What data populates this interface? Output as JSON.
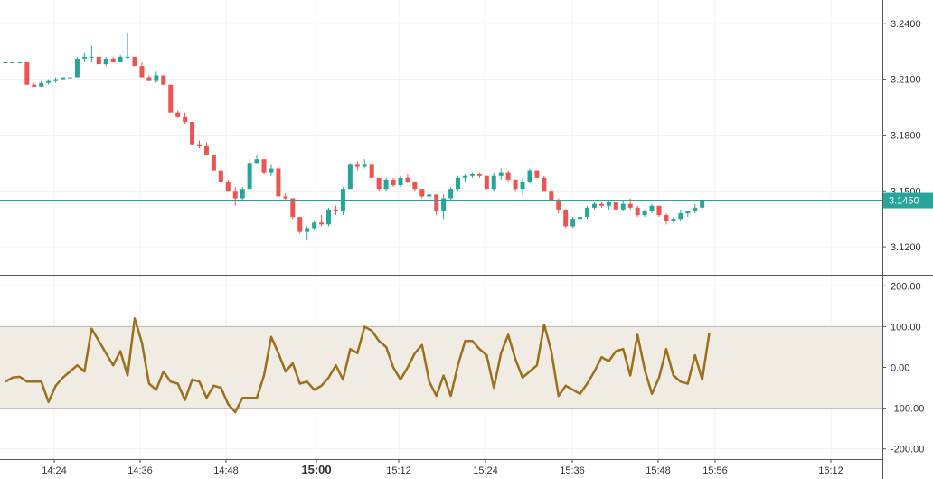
{
  "chart_data": [
    {
      "type": "candlestick",
      "title": "",
      "ylim": [
        3.105,
        3.2525
      ],
      "yticks": [
        "3.2400",
        "3.2100",
        "3.1800",
        "3.1500",
        "3.1200"
      ],
      "last_price": "3.1450",
      "colors": {
        "up": "#26a69a",
        "down": "#ef5350",
        "last_line": "#26a69a"
      },
      "candles": [
        [
          3.219,
          3.219,
          3.219,
          3.219
        ],
        [
          3.219,
          3.219,
          3.219,
          3.219
        ],
        [
          3.219,
          3.219,
          3.219,
          3.219
        ],
        [
          3.219,
          3.219,
          3.207,
          3.207
        ],
        [
          3.207,
          3.208,
          3.206,
          3.206
        ],
        [
          3.206,
          3.209,
          3.206,
          3.208
        ],
        [
          3.208,
          3.21,
          3.207,
          3.209
        ],
        [
          3.209,
          3.211,
          3.208,
          3.21
        ],
        [
          3.21,
          3.211,
          3.21,
          3.211
        ],
        [
          3.211,
          3.211,
          3.211,
          3.211
        ],
        [
          3.211,
          3.222,
          3.211,
          3.221
        ],
        [
          3.221,
          3.224,
          3.219,
          3.222
        ],
        [
          3.222,
          3.228,
          3.219,
          3.222
        ],
        [
          3.222,
          3.222,
          3.218,
          3.218
        ],
        [
          3.218,
          3.222,
          3.217,
          3.221
        ],
        [
          3.221,
          3.222,
          3.219,
          3.219
        ],
        [
          3.219,
          3.223,
          3.219,
          3.222
        ],
        [
          3.222,
          3.235,
          3.221,
          3.222
        ],
        [
          3.222,
          3.222,
          3.217,
          3.217
        ],
        [
          3.217,
          3.219,
          3.211,
          3.211
        ],
        [
          3.211,
          3.212,
          3.209,
          3.209
        ],
        [
          3.209,
          3.214,
          3.208,
          3.212
        ],
        [
          3.212,
          3.212,
          3.207,
          3.207
        ],
        [
          3.207,
          3.207,
          3.192,
          3.192
        ],
        [
          3.192,
          3.193,
          3.189,
          3.19
        ],
        [
          3.19,
          3.192,
          3.186,
          3.187
        ],
        [
          3.187,
          3.187,
          3.175,
          3.175
        ],
        [
          3.175,
          3.177,
          3.173,
          3.174
        ],
        [
          3.174,
          3.176,
          3.169,
          3.169
        ],
        [
          3.169,
          3.169,
          3.161,
          3.161
        ],
        [
          3.161,
          3.161,
          3.155,
          3.155
        ],
        [
          3.155,
          3.156,
          3.15,
          3.15
        ],
        [
          3.15,
          3.152,
          3.142,
          3.146
        ],
        [
          3.146,
          3.152,
          3.145,
          3.151
        ],
        [
          3.151,
          3.167,
          3.151,
          3.165
        ],
        [
          3.165,
          3.169,
          3.165,
          3.167
        ],
        [
          3.167,
          3.167,
          3.159,
          3.16
        ],
        [
          3.16,
          3.164,
          3.158,
          3.162
        ],
        [
          3.162,
          3.163,
          3.147,
          3.147
        ],
        [
          3.147,
          3.149,
          3.145,
          3.146
        ],
        [
          3.146,
          3.146,
          3.135,
          3.136
        ],
        [
          3.136,
          3.136,
          3.127,
          3.128
        ],
        [
          3.128,
          3.131,
          3.124,
          3.13
        ],
        [
          3.13,
          3.134,
          3.129,
          3.133
        ],
        [
          3.133,
          3.137,
          3.131,
          3.132
        ],
        [
          3.132,
          3.141,
          3.131,
          3.14
        ],
        [
          3.14,
          3.142,
          3.137,
          3.139
        ],
        [
          3.139,
          3.152,
          3.137,
          3.151
        ],
        [
          3.151,
          3.165,
          3.151,
          3.164
        ],
        [
          3.164,
          3.166,
          3.161,
          3.163
        ],
        [
          3.163,
          3.167,
          3.162,
          3.164
        ],
        [
          3.164,
          3.164,
          3.156,
          3.157
        ],
        [
          3.157,
          3.157,
          3.15,
          3.151
        ],
        [
          3.151,
          3.157,
          3.15,
          3.156
        ],
        [
          3.156,
          3.157,
          3.152,
          3.153
        ],
        [
          3.153,
          3.158,
          3.152,
          3.157
        ],
        [
          3.157,
          3.159,
          3.154,
          3.155
        ],
        [
          3.155,
          3.155,
          3.15,
          3.151
        ],
        [
          3.151,
          3.151,
          3.146,
          3.147
        ],
        [
          3.147,
          3.148,
          3.146,
          3.148
        ],
        [
          3.148,
          3.148,
          3.137,
          3.139
        ],
        [
          3.139,
          3.148,
          3.135,
          3.146
        ],
        [
          3.146,
          3.152,
          3.145,
          3.151
        ],
        [
          3.151,
          3.158,
          3.15,
          3.157
        ],
        [
          3.157,
          3.159,
          3.155,
          3.158
        ],
        [
          3.158,
          3.16,
          3.157,
          3.159
        ],
        [
          3.159,
          3.16,
          3.157,
          3.158
        ],
        [
          3.158,
          3.158,
          3.151,
          3.151
        ],
        [
          3.151,
          3.16,
          3.15,
          3.158
        ],
        [
          3.158,
          3.162,
          3.156,
          3.16
        ],
        [
          3.16,
          3.161,
          3.155,
          3.156
        ],
        [
          3.156,
          3.156,
          3.15,
          3.151
        ],
        [
          3.151,
          3.157,
          3.148,
          3.155
        ],
        [
          3.155,
          3.162,
          3.154,
          3.161
        ],
        [
          3.161,
          3.161,
          3.157,
          3.157
        ],
        [
          3.157,
          3.158,
          3.15,
          3.15
        ],
        [
          3.15,
          3.151,
          3.144,
          3.145
        ],
        [
          3.145,
          3.146,
          3.138,
          3.14
        ],
        [
          3.14,
          3.14,
          3.13,
          3.131
        ],
        [
          3.131,
          3.136,
          3.13,
          3.135
        ],
        [
          3.135,
          3.137,
          3.132,
          3.136
        ],
        [
          3.136,
          3.142,
          3.135,
          3.141
        ],
        [
          3.141,
          3.144,
          3.14,
          3.143
        ],
        [
          3.143,
          3.144,
          3.141,
          3.142
        ],
        [
          3.142,
          3.145,
          3.14,
          3.144
        ],
        [
          3.144,
          3.144,
          3.14,
          3.14
        ],
        [
          3.14,
          3.145,
          3.139,
          3.143
        ],
        [
          3.143,
          3.146,
          3.14,
          3.141
        ],
        [
          3.141,
          3.142,
          3.136,
          3.137
        ],
        [
          3.137,
          3.14,
          3.136,
          3.139
        ],
        [
          3.139,
          3.143,
          3.138,
          3.142
        ],
        [
          3.142,
          3.142,
          3.136,
          3.137
        ],
        [
          3.137,
          3.138,
          3.132,
          3.134
        ],
        [
          3.134,
          3.136,
          3.133,
          3.135
        ],
        [
          3.135,
          3.14,
          3.134,
          3.138
        ],
        [
          3.138,
          3.139,
          3.136,
          3.139
        ],
        [
          3.139,
          3.143,
          3.138,
          3.141
        ],
        [
          3.141,
          3.146,
          3.14,
          3.145
        ]
      ]
    },
    {
      "type": "line",
      "indicator": "",
      "ylim": [
        -225,
        225
      ],
      "yticks": [
        "200.00",
        "100.00",
        "0.00",
        "-100.00",
        "-200.00"
      ],
      "band": [
        100,
        -100
      ],
      "x_labels": [
        "14:24",
        "14:36",
        "14:48",
        "15:00",
        "15:12",
        "15:24",
        "15:36",
        "15:48",
        "15:56",
        "16:12"
      ],
      "colors": {
        "line": "#9b6f1c",
        "band": "#f1ece3"
      },
      "values": [
        -35,
        -25,
        -23,
        -35,
        -35,
        -35,
        -85,
        -45,
        -25,
        -10,
        5,
        -10,
        95,
        65,
        35,
        5,
        40,
        -20,
        120,
        60,
        -40,
        -55,
        -10,
        -35,
        -40,
        -80,
        -30,
        -35,
        -75,
        -45,
        -50,
        -90,
        -110,
        -75,
        -75,
        -75,
        -20,
        75,
        35,
        -10,
        10,
        -40,
        -35,
        -55,
        -45,
        -25,
        5,
        -30,
        45,
        35,
        100,
        90,
        65,
        50,
        0,
        -30,
        0,
        35,
        55,
        -35,
        -70,
        -20,
        -70,
        5,
        65,
        65,
        45,
        30,
        -50,
        35,
        80,
        20,
        -25,
        -10,
        5,
        105,
        40,
        -70,
        -45,
        -55,
        -65,
        -40,
        -10,
        25,
        15,
        40,
        45,
        -20,
        80,
        -5,
        -65,
        -25,
        45,
        -20,
        -35,
        -40,
        30,
        -30,
        85
      ]
    }
  ]
}
